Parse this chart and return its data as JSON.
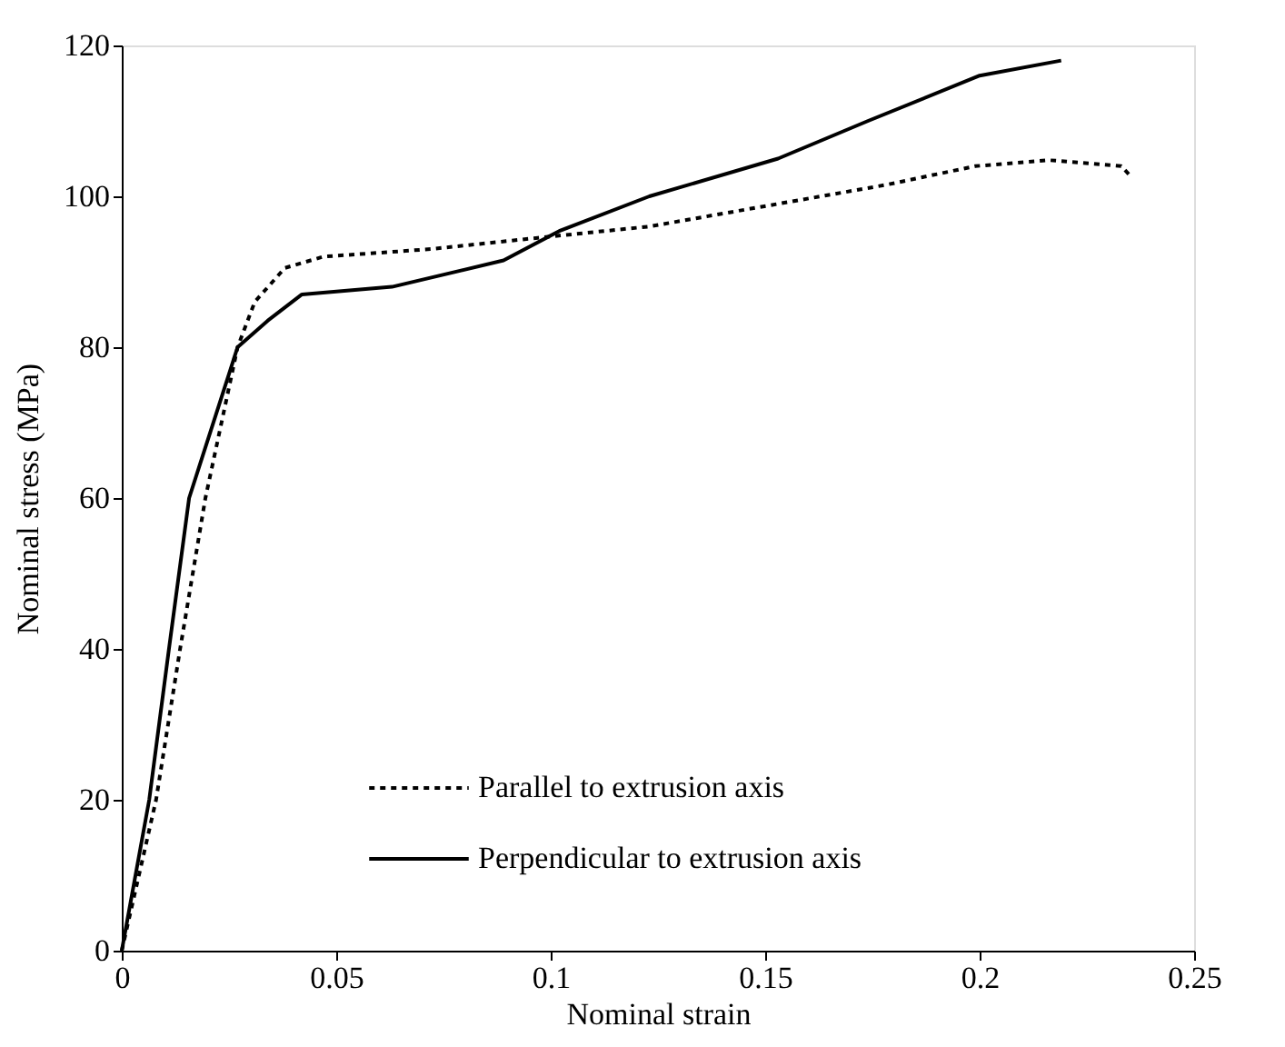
{
  "chart_data": {
    "type": "line",
    "xlabel": "Nominal strain",
    "ylabel": "Nominal stress (MPa)",
    "xlim": [
      0,
      0.25
    ],
    "xticks": [
      0,
      0.05,
      0.1,
      0.15,
      0.2,
      0.25
    ],
    "ylim": [
      0,
      120
    ],
    "yticks": [
      0,
      20,
      40,
      60,
      80,
      100,
      120
    ],
    "grid": false,
    "legend": "bottom",
    "marker": "none",
    "series": [
      {
        "name": "Parallel to extrusion axis",
        "color": "#000000",
        "line_style": "dotted",
        "x": [
          0,
          0.008,
          0.0136,
          0.0195,
          0.027,
          0.031,
          0.038,
          0.047,
          0.072,
          0.097,
          0.123,
          0.153,
          0.178,
          0.199,
          0.216,
          0.233,
          0.235
        ],
        "values": [
          0,
          20,
          40,
          60,
          80,
          86,
          90.5,
          92,
          93,
          94.5,
          96,
          99,
          101.5,
          104,
          104.8,
          104,
          102.8
        ]
      },
      {
        "name": "Perpendicular to extrusion axis",
        "color": "#000000",
        "line_style": "solid",
        "x": [
          0,
          0.0064,
          0.011,
          0.0157,
          0.027,
          0.034,
          0.042,
          0.063,
          0.089,
          0.102,
          0.123,
          0.153,
          0.174,
          0.2,
          0.219
        ],
        "values": [
          0,
          20,
          40,
          60,
          80,
          83.5,
          87,
          88,
          91.5,
          95.4,
          100,
          105,
          110,
          116,
          118
        ]
      }
    ]
  }
}
